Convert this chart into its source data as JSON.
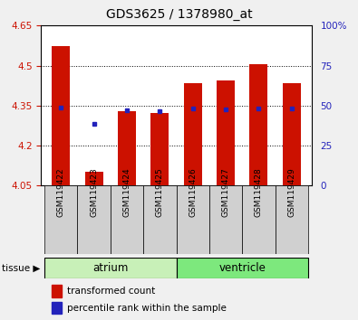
{
  "title": "GDS3625 / 1378980_at",
  "samples": [
    "GSM119422",
    "GSM119423",
    "GSM119424",
    "GSM119425",
    "GSM119426",
    "GSM119427",
    "GSM119428",
    "GSM119429"
  ],
  "red_bar_tops": [
    4.573,
    4.103,
    4.33,
    4.323,
    4.435,
    4.443,
    4.505,
    4.435
  ],
  "red_bar_bottom": 4.05,
  "blue_dot_values": [
    4.343,
    4.283,
    4.333,
    4.33,
    4.338,
    4.337,
    4.338,
    4.338
  ],
  "ylim_left": [
    4.05,
    4.65
  ],
  "ylim_right": [
    0,
    100
  ],
  "yticks_left": [
    4.05,
    4.2,
    4.35,
    4.5,
    4.65
  ],
  "yticks_left_labels": [
    "4.05",
    "4.2",
    "4.35",
    "4.5",
    "4.65"
  ],
  "yticks_right": [
    0,
    25,
    50,
    75,
    100
  ],
  "yticks_right_labels": [
    "0",
    "25",
    "50",
    "75",
    "100%"
  ],
  "groups": [
    {
      "label": "atrium",
      "start": 0,
      "end": 4,
      "color": "#c8f0b8"
    },
    {
      "label": "ventricle",
      "start": 4,
      "end": 8,
      "color": "#7de87d"
    }
  ],
  "tissue_label": "tissue",
  "bar_color": "#cc1100",
  "blue_color": "#2222bb",
  "bar_width": 0.55,
  "bg_color": "#f0f0f0",
  "plot_bg": "#ffffff",
  "xlabel_bg": "#d0d0d0",
  "legend_red_label": "transformed count",
  "legend_blue_label": "percentile rank within the sample",
  "grid_yticks": [
    4.2,
    4.35,
    4.5
  ]
}
